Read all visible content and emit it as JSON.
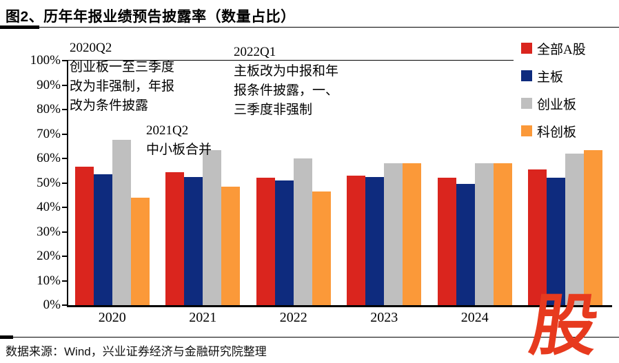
{
  "page": {
    "title": "图2、历年年报业绩预告披露率（数量占比）",
    "source": "数据来源：Wind，兴业证券经济与金融研究院整理",
    "watermark": "股"
  },
  "legend": {
    "items": [
      {
        "label": "全部A股",
        "color": "#DA251E"
      },
      {
        "label": "主板",
        "color": "#0E2B7E"
      },
      {
        "label": "创业板",
        "color": "#BFBFBF"
      },
      {
        "label": "科创板",
        "color": "#FB9939"
      }
    ]
  },
  "annotations": [
    {
      "lines": [
        "2020Q2",
        "创业板一至三季度",
        "改为非强制，年报",
        "改为条件披露"
      ]
    },
    {
      "lines": [
        "2021Q2",
        "中小板合并"
      ]
    },
    {
      "lines": [
        "2022Q1",
        "主板改为中报和年",
        "报条件披露，一、",
        "三季度非强制"
      ]
    }
  ],
  "chart_data": {
    "type": "bar",
    "title": "历年年报业绩预告披露率（数量占比）",
    "categories": [
      "2020",
      "2021",
      "2022",
      "2023",
      "2024",
      ""
    ],
    "series": [
      {
        "name": "全部A股",
        "color": "#DA251E",
        "values": [
          56.5,
          54.5,
          52.0,
          53.0,
          52.0,
          55.5
        ]
      },
      {
        "name": "主板",
        "color": "#0E2B7E",
        "values": [
          53.5,
          52.5,
          51.0,
          52.5,
          49.5,
          52.0
        ]
      },
      {
        "name": "创业板",
        "color": "#BFBFBF",
        "values": [
          67.5,
          63.5,
          60.0,
          58.0,
          58.0,
          62.0
        ]
      },
      {
        "name": "科创板",
        "color": "#FB9939",
        "values": [
          44.0,
          48.5,
          46.5,
          58.0,
          58.0,
          63.5
        ]
      }
    ],
    "ylim": [
      0,
      100
    ],
    "yticks": [
      "100%",
      "90%",
      "80%",
      "70%",
      "60%",
      "50%",
      "40%",
      "30%",
      "20%",
      "10%",
      "0%"
    ],
    "grid": false,
    "legend_position": "right-top"
  }
}
